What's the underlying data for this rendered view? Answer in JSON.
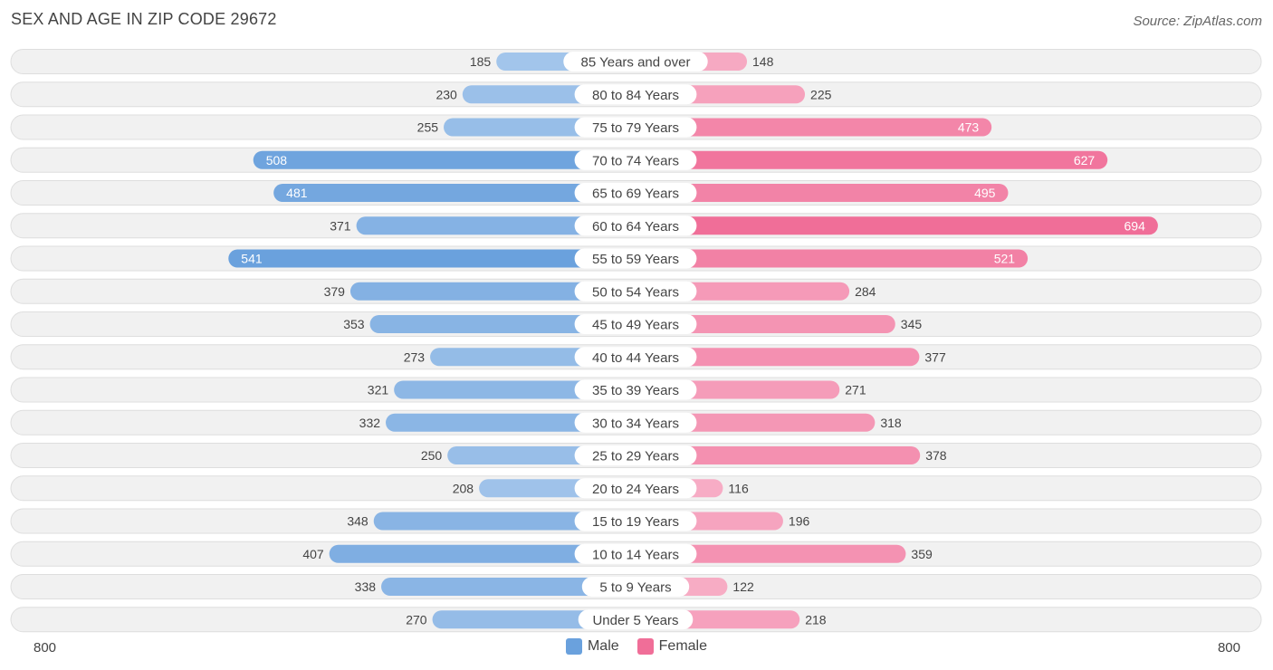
{
  "header": {
    "title": "SEX AND AGE IN ZIP CODE 29672",
    "source": "Source: ZipAtlas.com"
  },
  "colors": {
    "male": "#6aa1dd",
    "male_light": "#a8c8ec",
    "female": "#f06e98",
    "female_light": "#f7aec6",
    "row_background": "#f1f1f1",
    "row_border": "#dedede"
  },
  "chart_data": {
    "type": "bar",
    "orientation": "horizontal-diverging",
    "title": "SEX AND AGE IN ZIP CODE 29672",
    "categories": [
      "85 Years and over",
      "80 to 84 Years",
      "75 to 79 Years",
      "70 to 74 Years",
      "65 to 69 Years",
      "60 to 64 Years",
      "55 to 59 Years",
      "50 to 54 Years",
      "45 to 49 Years",
      "40 to 44 Years",
      "35 to 39 Years",
      "30 to 34 Years",
      "25 to 29 Years",
      "20 to 24 Years",
      "15 to 19 Years",
      "10 to 14 Years",
      "5 to 9 Years",
      "Under 5 Years"
    ],
    "series": [
      {
        "name": "Male",
        "values": [
          185,
          230,
          255,
          508,
          481,
          371,
          541,
          379,
          353,
          273,
          321,
          332,
          250,
          208,
          348,
          407,
          338,
          270
        ]
      },
      {
        "name": "Female",
        "values": [
          148,
          225,
          473,
          627,
          495,
          694,
          521,
          284,
          345,
          377,
          271,
          318,
          378,
          116,
          196,
          359,
          122,
          218
        ]
      }
    ],
    "xlim": [
      -800,
      800
    ],
    "axis_labels": {
      "left": "800",
      "right": "800"
    },
    "legend_position": "bottom-center",
    "grid": false
  }
}
